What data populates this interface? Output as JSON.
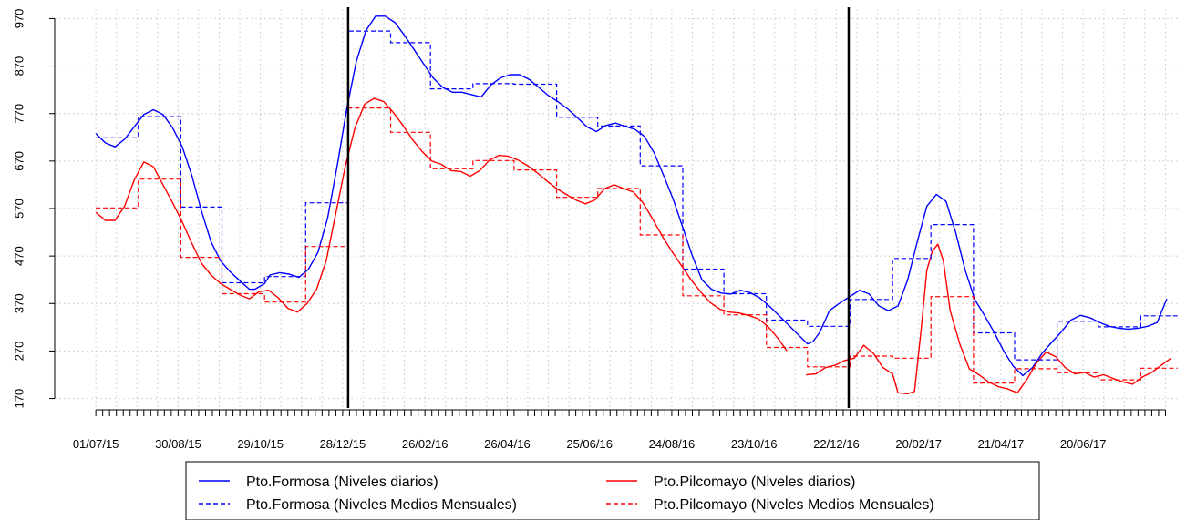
{
  "chart_data": {
    "type": "line",
    "title": "",
    "xlabel": "",
    "ylabel": "",
    "ylim": [
      150,
      990
    ],
    "xlim": [
      "2015-06-01",
      "2017-08-28"
    ],
    "grid": true,
    "legend_position": "bottom",
    "y_ticks": [
      170,
      270,
      370,
      470,
      570,
      670,
      770,
      870,
      970
    ],
    "x_tick_labels": [
      "01/07/15",
      "30/08/15",
      "29/10/15",
      "28/12/15",
      "26/02/16",
      "26/04/16",
      "25/06/16",
      "24/08/16",
      "23/10/16",
      "22/12/16",
      "20/02/17",
      "21/04/17",
      "20/06/17"
    ],
    "x_tick_dates": [
      "2015-07-01",
      "2015-08-30",
      "2015-10-29",
      "2015-12-28",
      "2016-02-26",
      "2016-04-26",
      "2016-06-25",
      "2016-08-24",
      "2016-10-23",
      "2016-12-22",
      "2017-02-20",
      "2017-04-21",
      "2017-06-20"
    ],
    "vertical_lines": [
      "2016-01-01",
      "2016-12-31"
    ],
    "series": [
      {
        "name": "Pto.Formosa (Niveles diarios)",
        "color": "#0000FF",
        "dash": "solid",
        "points": [
          [
            "2015-07-01",
            728
          ],
          [
            "2015-07-08",
            708
          ],
          [
            "2015-07-15",
            700
          ],
          [
            "2015-07-22",
            716
          ],
          [
            "2015-07-29",
            742
          ],
          [
            "2015-08-05",
            768
          ],
          [
            "2015-08-12",
            778
          ],
          [
            "2015-08-19",
            768
          ],
          [
            "2015-08-26",
            740
          ],
          [
            "2015-09-02",
            700
          ],
          [
            "2015-09-09",
            640
          ],
          [
            "2015-09-16",
            565
          ],
          [
            "2015-09-23",
            500
          ],
          [
            "2015-09-30",
            460
          ],
          [
            "2015-10-07",
            437
          ],
          [
            "2015-10-14",
            418
          ],
          [
            "2015-10-21",
            400
          ],
          [
            "2015-10-25",
            400
          ],
          [
            "2015-11-01",
            412
          ],
          [
            "2015-11-05",
            430
          ],
          [
            "2015-11-12",
            435
          ],
          [
            "2015-11-19",
            432
          ],
          [
            "2015-11-26",
            425
          ],
          [
            "2015-12-03",
            442
          ],
          [
            "2015-12-10",
            478
          ],
          [
            "2015-12-17",
            550
          ],
          [
            "2015-12-24",
            660
          ],
          [
            "2015-12-31",
            780
          ],
          [
            "2016-01-07",
            880
          ],
          [
            "2016-01-14",
            945
          ],
          [
            "2016-01-21",
            975
          ],
          [
            "2016-01-28",
            975
          ],
          [
            "2016-02-04",
            962
          ],
          [
            "2016-02-11",
            935
          ],
          [
            "2016-02-18",
            905
          ],
          [
            "2016-02-25",
            875
          ],
          [
            "2016-03-03",
            845
          ],
          [
            "2016-03-10",
            825
          ],
          [
            "2016-03-17",
            815
          ],
          [
            "2016-03-24",
            815
          ],
          [
            "2016-03-31",
            810
          ],
          [
            "2016-04-07",
            805
          ],
          [
            "2016-04-14",
            830
          ],
          [
            "2016-04-21",
            845
          ],
          [
            "2016-04-28",
            852
          ],
          [
            "2016-05-05",
            852
          ],
          [
            "2016-05-12",
            842
          ],
          [
            "2016-05-19",
            825
          ],
          [
            "2016-05-26",
            808
          ],
          [
            "2016-06-02",
            795
          ],
          [
            "2016-06-09",
            780
          ],
          [
            "2016-06-16",
            762
          ],
          [
            "2016-06-23",
            742
          ],
          [
            "2016-06-30",
            732
          ],
          [
            "2016-07-07",
            745
          ],
          [
            "2016-07-14",
            750
          ],
          [
            "2016-07-21",
            743
          ],
          [
            "2016-07-28",
            737
          ],
          [
            "2016-08-04",
            722
          ],
          [
            "2016-08-11",
            688
          ],
          [
            "2016-08-18",
            640
          ],
          [
            "2016-08-25",
            590
          ],
          [
            "2016-09-01",
            530
          ],
          [
            "2016-09-08",
            470
          ],
          [
            "2016-09-15",
            420
          ],
          [
            "2016-09-22",
            400
          ],
          [
            "2016-09-29",
            392
          ],
          [
            "2016-10-06",
            390
          ],
          [
            "2016-10-13",
            398
          ],
          [
            "2016-10-20",
            393
          ],
          [
            "2016-10-27",
            382
          ],
          [
            "2016-11-03",
            365
          ],
          [
            "2016-11-10",
            345
          ],
          [
            "2016-11-17",
            325
          ],
          [
            "2016-11-24",
            305
          ],
          [
            "2016-12-01",
            285
          ],
          [
            "2016-12-05",
            290
          ],
          [
            "2016-12-10",
            310
          ],
          [
            "2016-12-17",
            355
          ],
          [
            "2016-12-24",
            370
          ],
          [
            "2017-01-01",
            385
          ],
          [
            "2017-01-08",
            398
          ],
          [
            "2017-01-15",
            390
          ],
          [
            "2017-01-22",
            365
          ],
          [
            "2017-01-29",
            355
          ],
          [
            "2017-02-05",
            365
          ],
          [
            "2017-02-12",
            420
          ],
          [
            "2017-02-19",
            500
          ],
          [
            "2017-02-26",
            575
          ],
          [
            "2017-03-05",
            600
          ],
          [
            "2017-03-12",
            585
          ],
          [
            "2017-03-19",
            520
          ],
          [
            "2017-03-26",
            440
          ],
          [
            "2017-04-02",
            378
          ],
          [
            "2017-04-09",
            345
          ],
          [
            "2017-04-16",
            310
          ],
          [
            "2017-04-23",
            270
          ],
          [
            "2017-04-30",
            238
          ],
          [
            "2017-05-07",
            218
          ],
          [
            "2017-05-14",
            235
          ],
          [
            "2017-05-21",
            265
          ],
          [
            "2017-05-28",
            288
          ],
          [
            "2017-06-04",
            310
          ],
          [
            "2017-06-11",
            335
          ],
          [
            "2017-06-18",
            345
          ],
          [
            "2017-06-25",
            340
          ],
          [
            "2017-07-02",
            330
          ],
          [
            "2017-07-09",
            322
          ],
          [
            "2017-07-16",
            318
          ],
          [
            "2017-07-23",
            316
          ],
          [
            "2017-07-30",
            318
          ],
          [
            "2017-08-06",
            322
          ],
          [
            "2017-08-13",
            330
          ],
          [
            "2017-08-20",
            380
          ]
        ]
      },
      {
        "name": "Pto.Pilcomayo (Niveles diarios)",
        "color": "#FF0000",
        "dash": "solid",
        "points": [
          [
            "2015-07-01",
            562
          ],
          [
            "2015-07-08",
            545
          ],
          [
            "2015-07-15",
            545
          ],
          [
            "2015-07-22",
            575
          ],
          [
            "2015-07-29",
            630
          ],
          [
            "2015-08-05",
            668
          ],
          [
            "2015-08-12",
            658
          ],
          [
            "2015-08-19",
            620
          ],
          [
            "2015-08-26",
            582
          ],
          [
            "2015-09-02",
            542
          ],
          [
            "2015-09-09",
            497
          ],
          [
            "2015-09-16",
            455
          ],
          [
            "2015-09-23",
            430
          ],
          [
            "2015-09-30",
            412
          ],
          [
            "2015-10-07",
            400
          ],
          [
            "2015-10-14",
            388
          ],
          [
            "2015-10-21",
            380
          ],
          [
            "2015-10-28",
            395
          ],
          [
            "2015-11-04",
            398
          ],
          [
            "2015-11-11",
            382
          ],
          [
            "2015-11-18",
            360
          ],
          [
            "2015-11-25",
            352
          ],
          [
            "2015-12-02",
            370
          ],
          [
            "2015-12-09",
            400
          ],
          [
            "2015-12-16",
            460
          ],
          [
            "2015-12-23",
            560
          ],
          [
            "2015-12-30",
            660
          ],
          [
            "2016-01-06",
            740
          ],
          [
            "2016-01-13",
            790
          ],
          [
            "2016-01-20",
            802
          ],
          [
            "2016-01-27",
            795
          ],
          [
            "2016-02-03",
            772
          ],
          [
            "2016-02-10",
            745
          ],
          [
            "2016-02-17",
            715
          ],
          [
            "2016-02-24",
            690
          ],
          [
            "2016-03-02",
            670
          ],
          [
            "2016-03-09",
            663
          ],
          [
            "2016-03-16",
            650
          ],
          [
            "2016-03-23",
            648
          ],
          [
            "2016-03-30",
            638
          ],
          [
            "2016-04-06",
            650
          ],
          [
            "2016-04-13",
            672
          ],
          [
            "2016-04-20",
            682
          ],
          [
            "2016-04-27",
            680
          ],
          [
            "2016-05-04",
            672
          ],
          [
            "2016-05-11",
            660
          ],
          [
            "2016-05-18",
            645
          ],
          [
            "2016-05-25",
            628
          ],
          [
            "2016-06-01",
            612
          ],
          [
            "2016-06-08",
            600
          ],
          [
            "2016-06-15",
            588
          ],
          [
            "2016-06-22",
            580
          ],
          [
            "2016-06-29",
            588
          ],
          [
            "2016-07-06",
            612
          ],
          [
            "2016-07-13",
            620
          ],
          [
            "2016-07-20",
            612
          ],
          [
            "2016-07-27",
            605
          ],
          [
            "2016-08-03",
            582
          ],
          [
            "2016-08-10",
            548
          ],
          [
            "2016-08-17",
            512
          ],
          [
            "2016-08-24",
            480
          ],
          [
            "2016-08-31",
            450
          ],
          [
            "2016-09-07",
            420
          ],
          [
            "2016-09-14",
            395
          ],
          [
            "2016-09-21",
            372
          ],
          [
            "2016-09-28",
            358
          ],
          [
            "2016-10-05",
            352
          ],
          [
            "2016-10-12",
            350
          ],
          [
            "2016-10-19",
            345
          ],
          [
            "2016-10-26",
            338
          ],
          [
            "2016-11-02",
            322
          ],
          [
            "2016-11-09",
            298
          ],
          [
            "2016-11-16",
            270
          ],
          null,
          [
            "2016-11-30",
            220
          ],
          [
            "2016-12-07",
            222
          ],
          [
            "2016-12-14",
            235
          ],
          [
            "2016-12-21",
            240
          ],
          [
            "2016-12-28",
            250
          ],
          [
            "2017-01-04",
            255
          ],
          [
            "2017-01-11",
            282
          ],
          [
            "2017-01-18",
            265
          ],
          [
            "2017-01-25",
            235
          ],
          [
            "2017-02-01",
            222
          ],
          [
            "2017-02-05",
            182
          ],
          [
            "2017-02-12",
            180
          ],
          [
            "2017-02-17",
            185
          ],
          [
            "2017-02-22",
            320
          ],
          [
            "2017-02-26",
            440
          ],
          [
            "2017-03-02",
            480
          ],
          [
            "2017-03-06",
            495
          ],
          [
            "2017-03-10",
            460
          ],
          [
            "2017-03-15",
            355
          ],
          [
            "2017-03-22",
            285
          ],
          [
            "2017-03-29",
            232
          ],
          [
            "2017-04-05",
            220
          ],
          [
            "2017-04-12",
            205
          ],
          [
            "2017-04-19",
            195
          ],
          [
            "2017-04-26",
            190
          ],
          [
            "2017-05-03",
            182
          ],
          [
            "2017-05-10",
            210
          ],
          [
            "2017-05-17",
            245
          ],
          [
            "2017-05-24",
            268
          ],
          [
            "2017-05-31",
            258
          ],
          [
            "2017-06-07",
            235
          ],
          [
            "2017-06-14",
            222
          ],
          [
            "2017-06-21",
            225
          ],
          [
            "2017-06-28",
            215
          ],
          [
            "2017-07-05",
            220
          ],
          [
            "2017-07-12",
            212
          ],
          [
            "2017-07-19",
            205
          ],
          [
            "2017-07-26",
            200
          ],
          [
            "2017-08-02",
            215
          ],
          [
            "2017-08-09",
            225
          ],
          [
            "2017-08-16",
            240
          ],
          [
            "2017-08-23",
            255
          ]
        ]
      }
    ]
  },
  "legend": {
    "items": [
      {
        "label": "Pto.Formosa (Niveles diarios)",
        "color": "#0000FF",
        "dash": "solid"
      },
      {
        "label": "Pto.Pilcomayo (Niveles diarios)",
        "color": "#FF0000",
        "dash": "solid"
      },
      {
        "label": "Pto.Formosa (Niveles Medios Mensuales)",
        "color": "#0000FF",
        "dash": "dashed"
      },
      {
        "label": "Pto.Pilcomayo (Niveles Medios Mensuales)",
        "color": "#FF0000",
        "dash": "dashed"
      }
    ]
  }
}
